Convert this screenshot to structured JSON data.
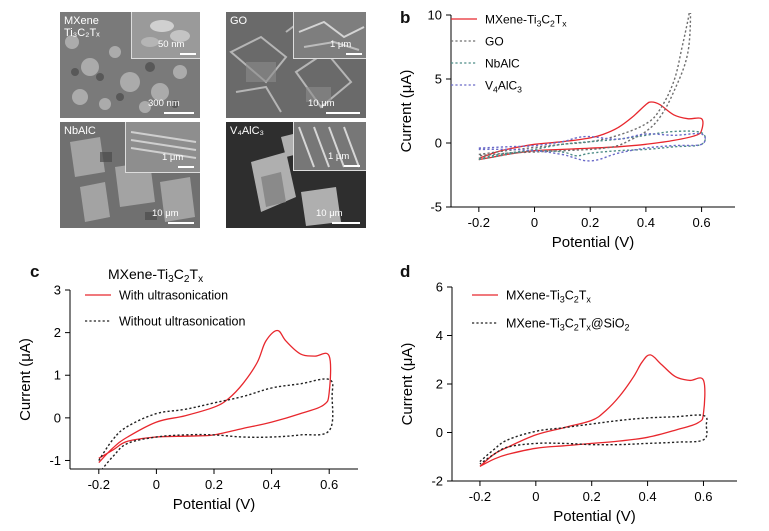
{
  "panels": {
    "a": {
      "letter": "a",
      "images": [
        {
          "label_line1": "MXene",
          "label_line2": "Ti₃C₂Tₓ",
          "inset_scale": "50 nm",
          "main_scale": "300 nm"
        },
        {
          "label_line1": "GO",
          "label_line2": "",
          "inset_scale": "1 μm",
          "main_scale": "10 μm"
        },
        {
          "label_line1": "NbAlC",
          "label_line2": "",
          "inset_scale": "1 μm",
          "main_scale": "10 μm"
        },
        {
          "label_line1": "V₄AlC₃",
          "label_line2": "",
          "inset_scale": "1 μm",
          "main_scale": "10 μm"
        }
      ]
    },
    "b": {
      "letter": "b"
    },
    "c": {
      "letter": "c"
    },
    "d": {
      "letter": "d"
    }
  },
  "colors": {
    "red": "#e8272d",
    "black": "#222222",
    "gray": "#6f6f6f",
    "teal": "#4d8c86",
    "blue": "#6a6ac8"
  },
  "chart_data": [
    {
      "id": "b",
      "type": "line",
      "xlabel": "Potential (V)",
      "ylabel": "Current (μA)",
      "xlim": [
        -0.3,
        0.72
      ],
      "ylim": [
        -5,
        10
      ],
      "xticks": [
        -0.2,
        0,
        0.2,
        0.4,
        0.6
      ],
      "yticks": [
        -5,
        0,
        5,
        10
      ],
      "legend": "top-right",
      "series": [
        {
          "name": "MXene-Ti3C2Tx",
          "style": "solid",
          "color": "#e8272d",
          "x": [
            -0.2,
            -0.15,
            -0.1,
            0,
            0.1,
            0.2,
            0.25,
            0.3,
            0.35,
            0.4,
            0.42,
            0.45,
            0.5,
            0.55,
            0.6,
            0.6,
            0.58,
            0.5,
            0.4,
            0.3,
            0.2,
            0.15,
            0.1,
            0,
            -0.1,
            -0.15,
            -0.2
          ],
          "y": [
            -1.2,
            -0.8,
            -0.5,
            -0.1,
            0.1,
            0.4,
            0.7,
            1.2,
            2.0,
            3.0,
            3.2,
            3.0,
            2.2,
            1.9,
            1.9,
            1.0,
            0.6,
            0.2,
            -0.1,
            -0.3,
            -0.4,
            -0.45,
            -0.5,
            -0.6,
            -0.9,
            -1.1,
            -1.3
          ]
        },
        {
          "name": "GO",
          "style": "dotted",
          "color": "#6f6f6f",
          "x": [
            -0.2,
            -0.1,
            0,
            0.1,
            0.2,
            0.3,
            0.4,
            0.45,
            0.5,
            0.53,
            0.55,
            0.56,
            0.55,
            0.5,
            0.45,
            0.4,
            0.35,
            0.3,
            0.25,
            0.2,
            0.1,
            0,
            -0.1,
            -0.2
          ],
          "y": [
            -0.9,
            -0.6,
            -0.35,
            -0.1,
            0.1,
            0.6,
            1.5,
            2.6,
            4.8,
            7.5,
            9.5,
            10.5,
            7.0,
            4.0,
            2.0,
            0.9,
            0.3,
            -0.2,
            -0.4,
            -0.5,
            -0.6,
            -0.7,
            -0.8,
            -1.0
          ]
        },
        {
          "name": "NbAlC",
          "style": "dotted",
          "color": "#4d8c86",
          "x": [
            -0.2,
            -0.1,
            0,
            0.1,
            0.2,
            0.3,
            0.4,
            0.5,
            0.6,
            0.6,
            0.5,
            0.4,
            0.3,
            0.2,
            0.15,
            0.1,
            0,
            -0.1,
            -0.2
          ],
          "y": [
            -1.3,
            -0.9,
            -0.5,
            -0.1,
            0.1,
            0.3,
            0.6,
            0.9,
            0.8,
            -0.1,
            -0.3,
            -0.5,
            -0.6,
            -0.8,
            -1.0,
            -0.7,
            -0.6,
            -0.8,
            -1.2
          ]
        },
        {
          "name": "V4AlC3",
          "style": "dotted",
          "color": "#6a6ac8",
          "x": [
            -0.2,
            -0.1,
            0,
            0.1,
            0.15,
            0.2,
            0.3,
            0.4,
            0.5,
            0.6,
            0.6,
            0.5,
            0.4,
            0.3,
            0.2,
            0.1,
            0,
            -0.1,
            -0.2
          ],
          "y": [
            -0.4,
            -0.3,
            -0.2,
            0.1,
            0.4,
            0.5,
            0.3,
            0.7,
            0.6,
            0.7,
            -0.1,
            -0.2,
            -0.4,
            -0.8,
            -1.4,
            -0.9,
            -0.6,
            -0.5,
            -0.5
          ]
        }
      ]
    },
    {
      "id": "c",
      "type": "line",
      "title": "MXene-Ti3C2Tx",
      "xlabel": "Potential (V)",
      "ylabel": "Current (μA)",
      "xlim": [
        -0.3,
        0.7
      ],
      "ylim": [
        -1.2,
        3
      ],
      "xticks": [
        -0.2,
        0,
        0.2,
        0.4,
        0.6
      ],
      "yticks": [
        -1,
        0,
        1,
        2,
        3
      ],
      "legend": "top-left",
      "series": [
        {
          "name": "With ultrasonication",
          "style": "solid",
          "color": "#e8272d",
          "x": [
            -0.2,
            -0.15,
            -0.1,
            0,
            0.1,
            0.2,
            0.25,
            0.3,
            0.35,
            0.38,
            0.42,
            0.45,
            0.5,
            0.55,
            0.6,
            0.6,
            0.58,
            0.5,
            0.4,
            0.3,
            0.2,
            0.15,
            0.1,
            0,
            -0.1,
            -0.15,
            -0.2
          ],
          "y": [
            -1.05,
            -0.7,
            -0.45,
            -0.1,
            0.05,
            0.25,
            0.45,
            0.8,
            1.3,
            1.8,
            2.05,
            1.8,
            1.5,
            1.45,
            1.45,
            0.6,
            0.3,
            0.1,
            -0.1,
            -0.25,
            -0.4,
            -0.42,
            -0.43,
            -0.45,
            -0.55,
            -0.75,
            -0.95
          ]
        },
        {
          "name": "Without ultrasonication",
          "style": "dotted",
          "color": "#222222",
          "x": [
            -0.2,
            -0.15,
            -0.1,
            0,
            0.1,
            0.2,
            0.3,
            0.4,
            0.5,
            0.6,
            0.61,
            0.6,
            0.5,
            0.4,
            0.3,
            0.2,
            0.1,
            0,
            -0.1,
            -0.15,
            -0.2
          ],
          "y": [
            -1.0,
            -0.5,
            -0.2,
            0.1,
            0.2,
            0.35,
            0.5,
            0.7,
            0.8,
            0.9,
            0.5,
            -0.3,
            -0.4,
            -0.45,
            -0.45,
            -0.4,
            -0.4,
            -0.45,
            -0.6,
            -0.9,
            -1.3
          ]
        }
      ]
    },
    {
      "id": "d",
      "type": "line",
      "xlabel": "Potential (V)",
      "ylabel": "Current (μA)",
      "xlim": [
        -0.3,
        0.72
      ],
      "ylim": [
        -2,
        6
      ],
      "xticks": [
        -0.2,
        0,
        0.2,
        0.4,
        0.6
      ],
      "yticks": [
        -2,
        0,
        2,
        4,
        6
      ],
      "legend": "top-left",
      "series": [
        {
          "name": "MXene-Ti3C2Tx",
          "style": "solid",
          "color": "#e8272d",
          "x": [
            -0.2,
            -0.15,
            -0.1,
            0,
            0.1,
            0.2,
            0.25,
            0.3,
            0.35,
            0.38,
            0.41,
            0.45,
            0.5,
            0.55,
            0.6,
            0.6,
            0.58,
            0.5,
            0.4,
            0.3,
            0.2,
            0.15,
            0.1,
            0,
            -0.1,
            -0.15,
            -0.2
          ],
          "y": [
            -1.4,
            -0.9,
            -0.6,
            -0.1,
            0.2,
            0.5,
            0.9,
            1.5,
            2.3,
            2.9,
            3.2,
            2.8,
            2.3,
            2.15,
            2.15,
            0.8,
            0.4,
            0.1,
            -0.2,
            -0.35,
            -0.45,
            -0.5,
            -0.55,
            -0.65,
            -0.9,
            -1.1,
            -1.4
          ]
        },
        {
          "name": "MXene-Ti3C2Tx@SiO2",
          "style": "dotted",
          "color": "#222222",
          "x": [
            -0.2,
            -0.15,
            -0.1,
            0,
            0.1,
            0.2,
            0.3,
            0.4,
            0.5,
            0.6,
            0.61,
            0.6,
            0.5,
            0.4,
            0.3,
            0.2,
            0.1,
            0,
            -0.1,
            -0.15,
            -0.2
          ],
          "y": [
            -1.2,
            -0.7,
            -0.3,
            0.05,
            0.2,
            0.35,
            0.5,
            0.6,
            0.65,
            0.7,
            0.3,
            -0.3,
            -0.4,
            -0.45,
            -0.5,
            -0.5,
            -0.45,
            -0.45,
            -0.6,
            -0.9,
            -1.3
          ]
        }
      ]
    }
  ]
}
